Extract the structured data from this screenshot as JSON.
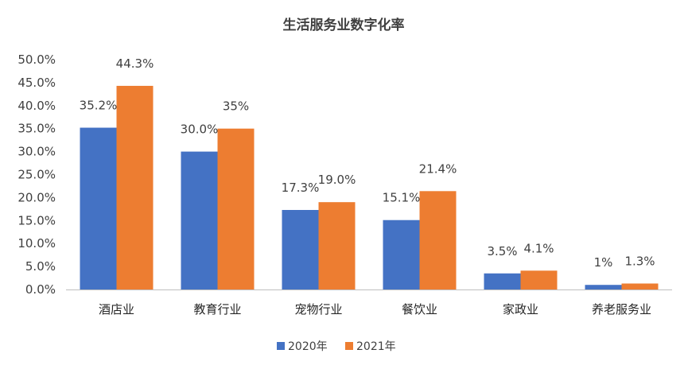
{
  "chart_data": {
    "type": "bar",
    "title": "生活服务业数字化率",
    "categories": [
      "酒店业",
      "教育行业",
      "宠物行业",
      "餐饮业",
      "家政业",
      "养老服务业"
    ],
    "series": [
      {
        "name": "2020年",
        "color": "#4472C4",
        "values": [
          35.2,
          30.0,
          17.3,
          15.1,
          3.5,
          1.0
        ],
        "labels": [
          "35.2%",
          "30.0%",
          "17.3%",
          "15.1%",
          "3.5%",
          "1%"
        ]
      },
      {
        "name": "2021年",
        "color": "#ED7D31",
        "values": [
          44.3,
          35.0,
          19.0,
          21.4,
          4.1,
          1.3
        ],
        "labels": [
          "44.3%",
          "35%",
          "19.0%",
          "21.4%",
          "4.1%",
          "1.3%"
        ]
      }
    ],
    "ylim": [
      0,
      50
    ],
    "yticks": [
      "0.0%",
      "5.0%",
      "10.0%",
      "15.0%",
      "20.0%",
      "25.0%",
      "30.0%",
      "35.0%",
      "40.0%",
      "45.0%",
      "50.0%"
    ],
    "xlabel": "",
    "ylabel": "",
    "grid": false,
    "legend": "bottom"
  }
}
